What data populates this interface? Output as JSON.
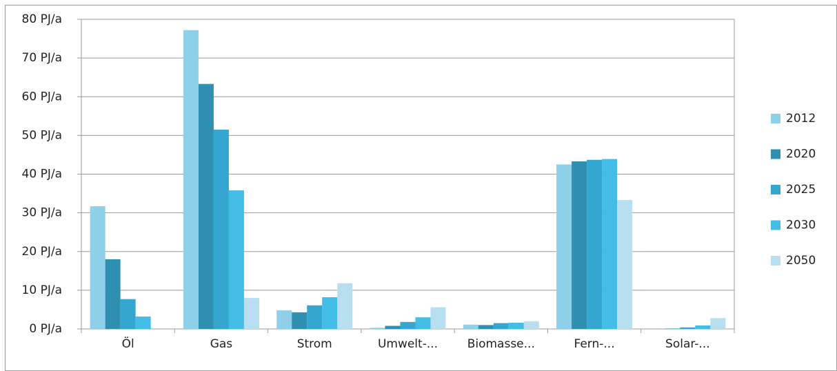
{
  "chart_data": {
    "type": "bar",
    "categories": [
      "Öl",
      "Gas",
      "Strom",
      "Umwelt-...",
      "Biomasse...",
      "Fern-...",
      "Solar-..."
    ],
    "series": [
      {
        "name": "2012",
        "color": "#8ecfea",
        "values": [
          31.7,
          77.2,
          4.8,
          0.3,
          1.1,
          42.5,
          0
        ]
      },
      {
        "name": "2020",
        "color": "#2e8fb0",
        "values": [
          18.0,
          63.3,
          4.3,
          0.8,
          1.0,
          43.3,
          0.1
        ]
      },
      {
        "name": "2025",
        "color": "#35a6cf",
        "values": [
          7.7,
          51.5,
          6.1,
          1.8,
          1.5,
          43.7,
          0.4
        ]
      },
      {
        "name": "2030",
        "color": "#43bde6",
        "values": [
          3.2,
          35.8,
          8.2,
          3.0,
          1.6,
          43.9,
          0.9
        ]
      },
      {
        "name": "2050",
        "color": "#b7dff0",
        "values": [
          0,
          8.0,
          11.8,
          5.6,
          2.0,
          33.3,
          2.8
        ]
      }
    ],
    "ylim": [
      0,
      80
    ],
    "yticks": [
      {
        "value": 0,
        "label": "0 PJ/a"
      },
      {
        "value": 10,
        "label": "10 PJ/a"
      },
      {
        "value": 20,
        "label": "20 PJ/a"
      },
      {
        "value": 30,
        "label": "30 PJ/a"
      },
      {
        "value": 40,
        "label": "40 PJ/a"
      },
      {
        "value": 50,
        "label": "50 PJ/a"
      },
      {
        "value": 60,
        "label": "60 PJ/a"
      },
      {
        "value": 70,
        "label": "70 PJ/a"
      },
      {
        "value": 80,
        "label": "80 PJ/a"
      }
    ],
    "grid": true,
    "legend": "right"
  }
}
